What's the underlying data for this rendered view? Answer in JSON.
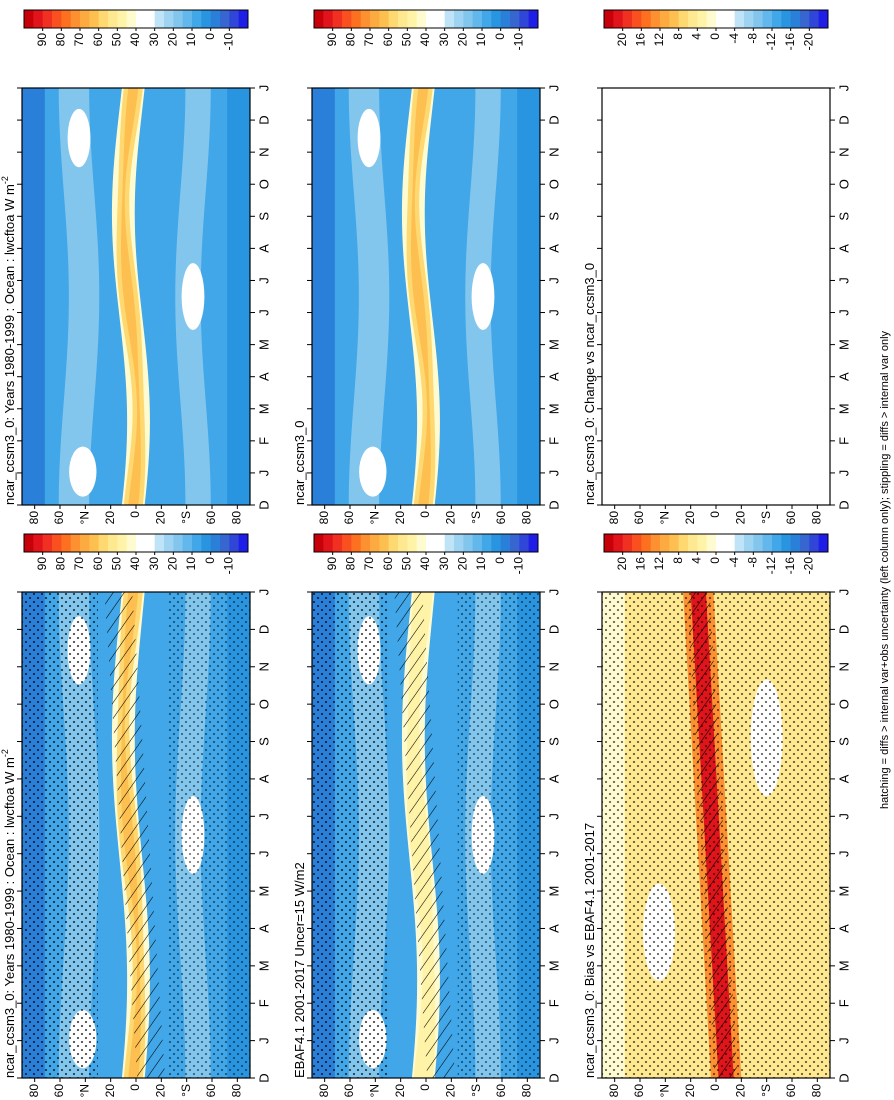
{
  "months": [
    "D",
    "J",
    "F",
    "M",
    "A",
    "M",
    "J",
    "J",
    "A",
    "S",
    "O",
    "N",
    "D",
    "J"
  ],
  "lat_labels": [
    "80",
    "60",
    "°N",
    "20",
    "0",
    "20",
    "°S",
    "60",
    "80"
  ],
  "panels": [
    {
      "title": "ncar_ccsm3_0: Years 1980-1999 : Ocean : lwcftoa W m",
      "title_superscript": "-2",
      "colorbar_labels": [
        "90",
        "80",
        "70",
        "60",
        "50",
        "40",
        "30",
        "20",
        "10",
        "0",
        "-10"
      ]
    },
    {
      "title": "EBAF4.1 2001-2017 Uncer=15 W/m2",
      "colorbar_labels": [
        "90",
        "80",
        "70",
        "60",
        "50",
        "40",
        "30",
        "20",
        "10",
        "0",
        "-10"
      ]
    },
    {
      "title": "ncar_ccsm3_0: Bias vs EBAF4.1 2001-2017",
      "colorbar_labels": [
        "20",
        "16",
        "12",
        "8",
        "4",
        "0",
        "-4",
        "-8",
        "-12",
        "-16",
        "-20"
      ]
    },
    {
      "title": "ncar_ccsm3_0: Years 1980-1999 : Ocean : lwcftoa W m",
      "title_superscript": "-2",
      "colorbar_labels": [
        "90",
        "80",
        "70",
        "60",
        "50",
        "40",
        "30",
        "20",
        "10",
        "0",
        "-10"
      ]
    },
    {
      "title": "ncar_ccsm3_0",
      "colorbar_labels": [
        "90",
        "80",
        "70",
        "60",
        "50",
        "40",
        "30",
        "20",
        "10",
        "0",
        "-10"
      ]
    },
    {
      "title": "ncar_ccsm3_0: Change vs ncar_ccsm3_0",
      "colorbar_labels": [
        "20",
        "16",
        "12",
        "8",
        "4",
        "0",
        "-4",
        "-8",
        "-12",
        "-16",
        "-20"
      ]
    }
  ],
  "footer": "hatching = diffs > internal var+obs uncertainty (left column only); stippling = diffs > internal var only"
}
